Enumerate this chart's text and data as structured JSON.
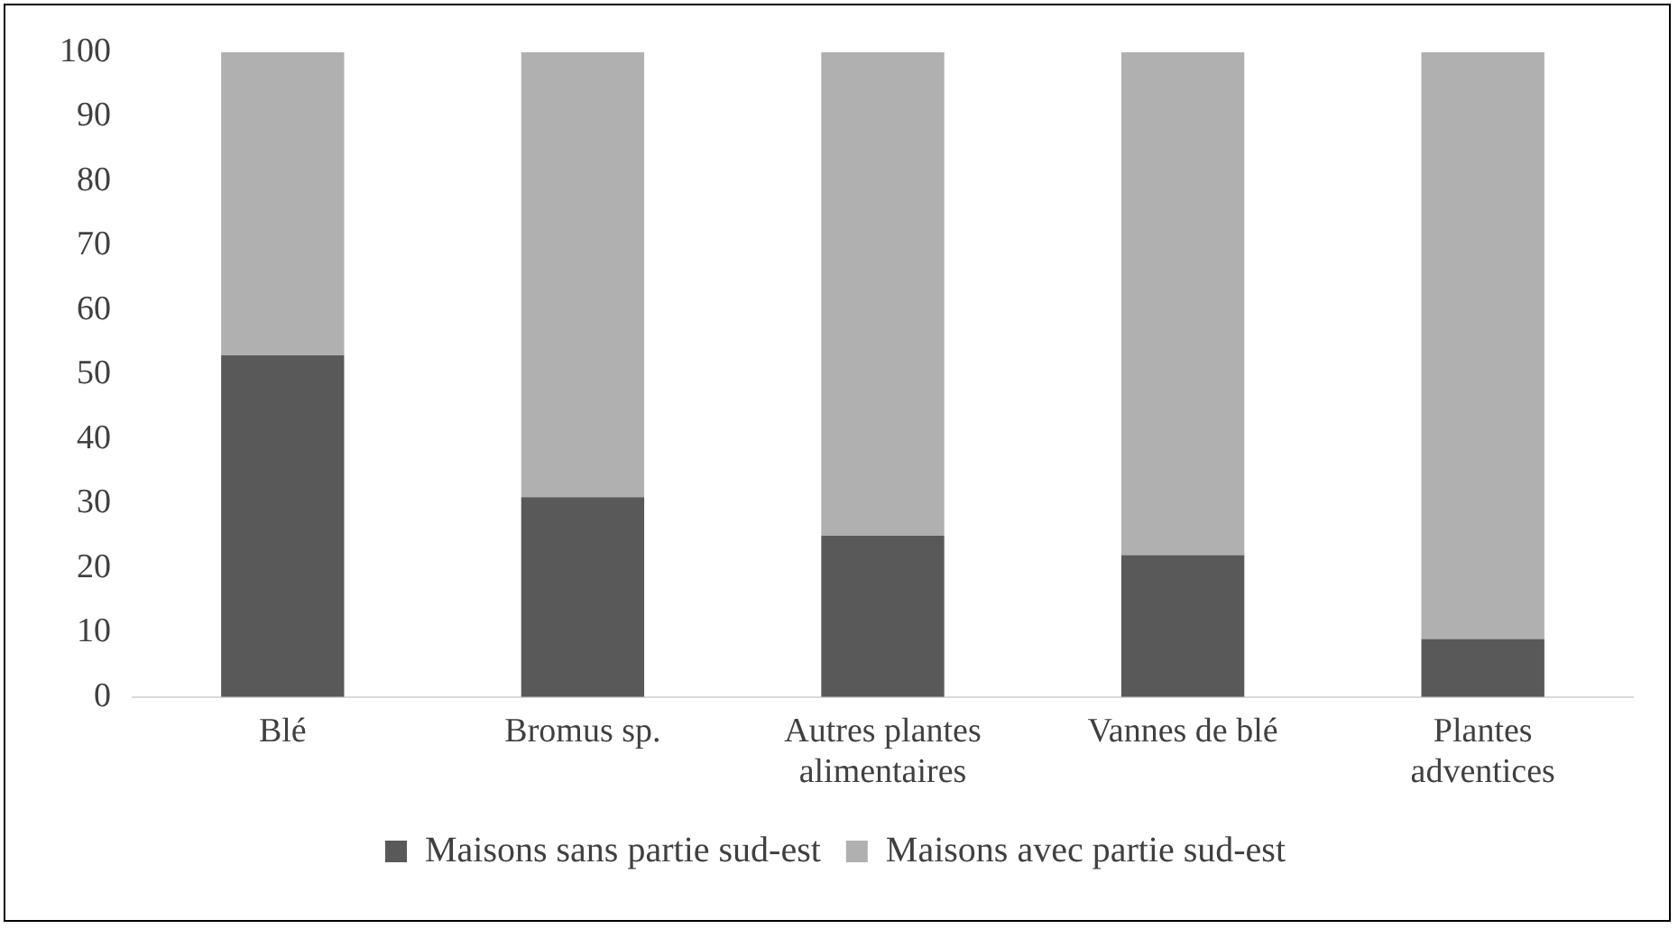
{
  "chart_data": {
    "type": "bar",
    "stacked": true,
    "categories": [
      "Blé",
      "Bromus sp.",
      "Autres plantes alimentaires",
      "Vannes de blé",
      "Plantes adventices"
    ],
    "series": [
      {
        "name": "Maisons sans partie sud-est",
        "color": "#595959",
        "values": [
          53,
          31,
          25,
          22,
          9
        ]
      },
      {
        "name": "Maisons avec partie sud-est",
        "color": "#b0b0b0",
        "values": [
          47,
          69,
          75,
          78,
          91
        ]
      }
    ],
    "ylim": [
      0,
      100
    ],
    "yticks": [
      0,
      10,
      20,
      30,
      40,
      50,
      60,
      70,
      80,
      90,
      100
    ],
    "grid": false,
    "legend": "bottom"
  }
}
